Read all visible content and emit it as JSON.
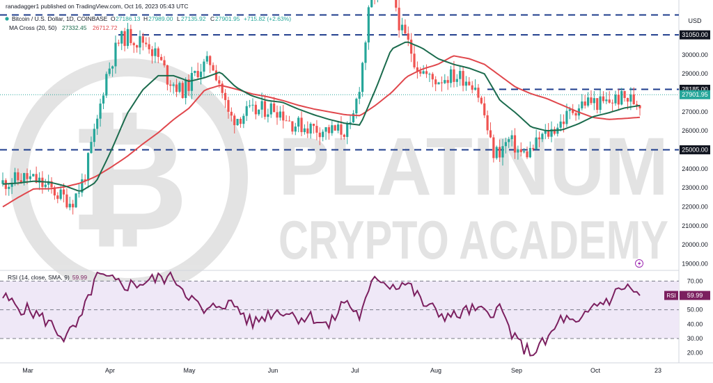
{
  "header": {
    "publisher": "ranadagger1 published on TradingView.com, Oct 16, 2023 05:43 UTC",
    "symbol": "Bitcoin / U.S. Dollar, 1D, COINBASE",
    "ohlc": [
      {
        "label": "O",
        "value": "27186.13"
      },
      {
        "label": "H",
        "value": "27989.00"
      },
      {
        "label": "L",
        "value": "27135.92"
      },
      {
        "label": "C",
        "value": "27901.95"
      }
    ],
    "change": "+715.82 (+2.63%)",
    "indicator": "MA Cross (20, 50)",
    "ma_fast_value": "27332.45",
    "ma_slow_value": "26712.72",
    "currency": "USD"
  },
  "watermark": {
    "line1": "PLATINUM",
    "line2": "CRYPTO ACADEMY"
  },
  "colors": {
    "up": "#26a69a",
    "down": "#ef5350",
    "ma_fast": "#1b6b4d",
    "ma_slow": "#e0474c",
    "level_line": "#1e3c8c",
    "rsi": "#7b1f5f",
    "rsi_band": "#efe8f7",
    "price_tag": "#26a69a"
  },
  "rsi_panel": {
    "title": "RSI (14, close, SMA, 9)",
    "value": "59.99",
    "tag": "RSI",
    "ylim": [
      14,
      76
    ],
    "band": [
      30,
      70
    ],
    "midline": 50,
    "ticks": [
      "70.00",
      "60.00",
      "50.00",
      "40.00",
      "30.00",
      "20.00"
    ]
  },
  "chart_data": {
    "type": "candlestick",
    "x_labels": [
      "Mar",
      "Apr",
      "May",
      "Jun",
      "Jul",
      "Aug",
      "Sep",
      "Oct",
      "23"
    ],
    "y_ticks": [
      "30000.00",
      "29000.00",
      "27000.00",
      "26000.00",
      "24000.00",
      "23000.00",
      "22000.00",
      "21000.00",
      "20000.00",
      "19000.00"
    ],
    "ylim": [
      18800,
      32300
    ],
    "levels": [
      {
        "value": 32100,
        "label": ""
      },
      {
        "value": 31050,
        "label": "31050.00"
      },
      {
        "value": 28185,
        "label": "28185.00"
      },
      {
        "value": 25000,
        "label": "25000.00"
      }
    ],
    "last_price": {
      "value": 27901.95,
      "label": "27901.95"
    },
    "ma_fast": {
      "name": "MA 20",
      "values": [
        23200,
        23250,
        23350,
        23300,
        23100,
        22800,
        23300,
        25000,
        26900,
        28150,
        28900,
        28900,
        28600,
        28800,
        29100,
        28300,
        27850,
        27600,
        27500,
        27150,
        26850,
        26600,
        26400,
        26300,
        28200,
        30300,
        30700,
        30350,
        29800,
        29500,
        29300,
        29000,
        27600,
        26950,
        26200,
        26000,
        26050,
        26350,
        26750,
        26950,
        27200,
        27332.45
      ]
    },
    "ma_slow": {
      "name": "MA 50",
      "values": [
        22000,
        22500,
        22950,
        22950,
        23050,
        23250,
        23600,
        24100,
        24650,
        25300,
        25900,
        26600,
        27200,
        28150,
        28400,
        28200,
        27950,
        27800,
        27600,
        27350,
        27150,
        27000,
        26850,
        26800,
        27350,
        28000,
        28850,
        29250,
        29500,
        29950,
        29800,
        29500,
        28900,
        28300,
        27950,
        27700,
        27350,
        27000,
        26700,
        26600,
        26650,
        26712.72
      ]
    },
    "rsi": [
      59,
      52,
      48,
      41,
      30,
      42,
      74,
      70,
      67,
      69,
      72,
      73,
      60,
      47,
      55,
      53,
      40,
      47,
      50,
      45,
      45,
      38,
      57,
      45,
      74,
      67,
      69,
      55,
      48,
      45,
      50,
      48,
      51,
      28,
      20,
      28,
      45,
      38,
      53,
      57,
      67,
      59.99
    ]
  }
}
